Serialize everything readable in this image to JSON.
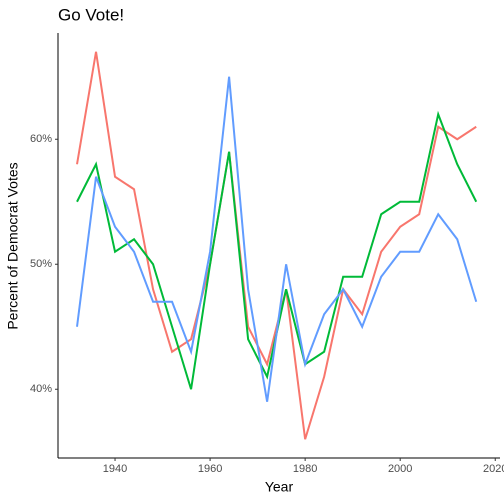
{
  "chart_data": {
    "type": "line",
    "title": "Go Vote!",
    "x_label": "Year",
    "y_label": "Percent of Democrat Votes",
    "x": [
      1932,
      1936,
      1940,
      1944,
      1948,
      1952,
      1956,
      1960,
      1964,
      1968,
      1972,
      1976,
      1980,
      1984,
      1988,
      1992,
      1996,
      2000,
      2004,
      2008,
      2012,
      2016
    ],
    "series": [
      {
        "color": "#F8766D",
        "values": [
          58,
          67,
          57,
          56,
          48,
          43,
          44,
          50,
          59,
          45,
          42,
          48,
          36,
          41,
          48,
          46,
          51,
          53,
          54,
          61,
          60,
          61
        ]
      },
      {
        "color": "#00BA38",
        "values": [
          55,
          58,
          51,
          52,
          50,
          45,
          40,
          50,
          59,
          44,
          41,
          48,
          42,
          43,
          49,
          49,
          54,
          55,
          55,
          62,
          58,
          55
        ]
      },
      {
        "color": "#619CFF",
        "values": [
          45,
          57,
          53,
          51,
          47,
          47,
          43,
          51,
          65,
          48,
          39,
          50,
          42,
          46,
          48,
          45,
          49,
          51,
          51,
          54,
          52,
          47
        ]
      }
    ],
    "xlim": [
      1928,
      2021
    ],
    "xticks": [
      1940,
      1960,
      1980,
      2000,
      2020
    ],
    "ylim": [
      34.5,
      68.5
    ],
    "yticks": [
      {
        "value": 40,
        "label": "40%"
      },
      {
        "value": 50,
        "label": "50%"
      },
      {
        "value": 60,
        "label": "60%"
      }
    ],
    "grid": false
  }
}
